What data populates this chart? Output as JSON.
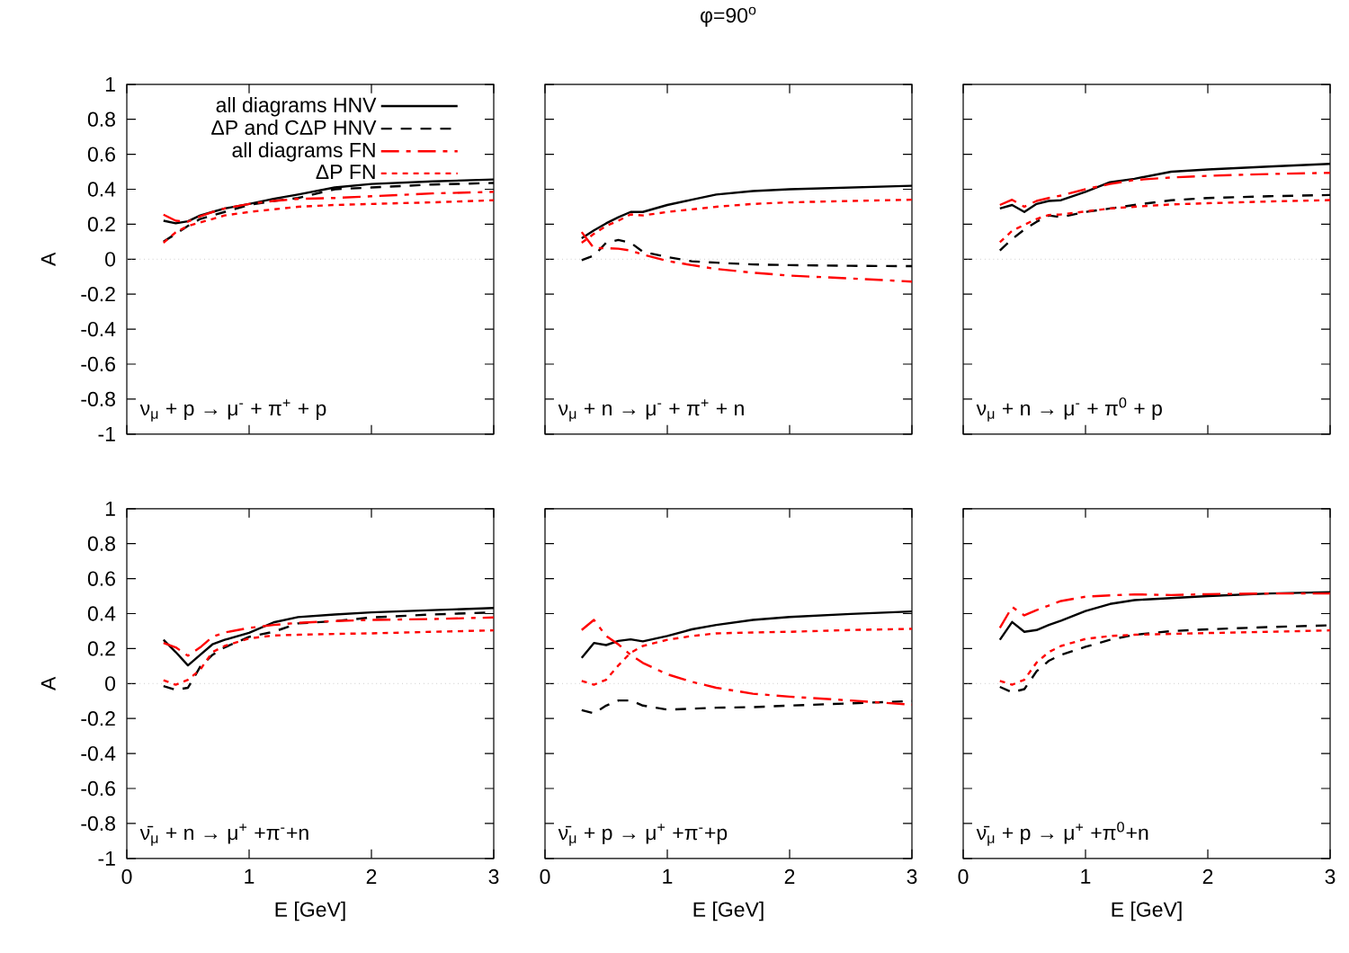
{
  "chart_data": [
    {
      "type": "line",
      "ylabel": "A",
      "annotations": [
        "ν$_{μ}$ + p → μ$^{-}$ + π$^{+}$ + p"
      ],
      "xlim": [
        0,
        3
      ],
      "ylim": [
        -1,
        1
      ],
      "xticks": [
        0,
        1,
        2,
        3
      ],
      "yticks": [
        -1,
        -0.8,
        -0.6,
        -0.4,
        -0.2,
        0,
        0.2,
        0.4,
        0.6,
        0.8,
        1
      ],
      "tick_labels": "y",
      "legend": "top right",
      "ref_lines": [
        {
          "axis": "y",
          "value": 0,
          "color": "#b0b0b0",
          "line_style": "dotted"
        }
      ],
      "x": [
        0.3,
        0.4,
        0.5,
        0.6,
        0.7,
        0.8,
        1.0,
        1.2,
        1.4,
        1.7,
        2.0,
        2.5,
        3.0
      ],
      "series": [
        {
          "name": "all diagrams HNV",
          "color": "#000000",
          "line_style": "solid",
          "values": [
            0.22,
            0.205,
            0.217,
            0.25,
            0.27,
            0.29,
            0.316,
            0.345,
            0.37,
            0.41,
            0.43,
            0.445,
            0.456
          ]
        },
        {
          "name": "ΔP and CΔP HNV",
          "color": "#000000",
          "line_style": "dashed",
          "values": [
            0.1,
            0.145,
            0.19,
            0.23,
            0.25,
            0.27,
            0.31,
            0.333,
            0.35,
            0.4,
            0.41,
            0.427,
            0.436
          ]
        },
        {
          "name": "all diagrams FN",
          "color": "#ff0000",
          "line_style": "dashdot",
          "values": [
            0.255,
            0.22,
            0.215,
            0.245,
            0.27,
            0.29,
            0.316,
            0.333,
            0.345,
            0.35,
            0.36,
            0.376,
            0.385
          ]
        },
        {
          "name": "ΔP FN",
          "color": "#ff0000",
          "line_style": "dotted",
          "values": [
            0.094,
            0.154,
            0.19,
            0.21,
            0.23,
            0.25,
            0.27,
            0.285,
            0.3,
            0.31,
            0.316,
            0.325,
            0.337
          ]
        }
      ]
    },
    {
      "type": "line",
      "title": "φ=90$^{o}$",
      "annotations": [
        "ν$_{μ}$ + n → μ$^{-}$ + π$^{+}$ + n"
      ],
      "xlim": [
        0,
        3
      ],
      "ylim": [
        -1,
        1
      ],
      "xticks": [
        0,
        1,
        2,
        3
      ],
      "yticks": [
        -1,
        -0.8,
        -0.6,
        -0.4,
        -0.2,
        0,
        0.2,
        0.4,
        0.6,
        0.8,
        1
      ],
      "tick_labels": false,
      "ref_lines": [
        {
          "axis": "y",
          "value": 0,
          "color": "#b0b0b0",
          "line_style": "dotted"
        }
      ],
      "x": [
        0.3,
        0.4,
        0.5,
        0.6,
        0.7,
        0.8,
        1.0,
        1.2,
        1.4,
        1.7,
        2.0,
        2.5,
        3.0
      ],
      "series": [
        {
          "color": "#000000",
          "line_style": "solid",
          "values": [
            0.12,
            0.165,
            0.205,
            0.24,
            0.27,
            0.27,
            0.31,
            0.34,
            0.37,
            0.39,
            0.4,
            0.41,
            0.42
          ]
        },
        {
          "color": "#000000",
          "line_style": "dashed",
          "values": [
            -0.005,
            0.02,
            0.094,
            0.11,
            0.094,
            0.043,
            0.012,
            -0.012,
            -0.02,
            -0.03,
            -0.034,
            -0.038,
            -0.04
          ]
        },
        {
          "color": "#ff0000",
          "line_style": "dashdot",
          "values": [
            0.155,
            0.063,
            0.063,
            0.06,
            0.05,
            0.026,
            -0.01,
            -0.034,
            -0.056,
            -0.077,
            -0.094,
            -0.11,
            -0.128
          ]
        },
        {
          "color": "#ff0000",
          "line_style": "dotted",
          "values": [
            0.094,
            0.145,
            0.19,
            0.22,
            0.256,
            0.25,
            0.27,
            0.285,
            0.3,
            0.316,
            0.325,
            0.333,
            0.34
          ]
        }
      ]
    },
    {
      "type": "line",
      "annotations": [
        "ν$_{μ}$ + n → μ$^{-}$ + π$^{0}$ + p"
      ],
      "xlim": [
        0,
        3
      ],
      "ylim": [
        -1,
        1
      ],
      "xticks": [
        0,
        1,
        2,
        3
      ],
      "yticks": [
        -1,
        -0.8,
        -0.6,
        -0.4,
        -0.2,
        0,
        0.2,
        0.4,
        0.6,
        0.8,
        1
      ],
      "tick_labels": false,
      "ref_lines": [
        {
          "axis": "y",
          "value": 0,
          "color": "#b0b0b0",
          "line_style": "dotted"
        }
      ],
      "x": [
        0.3,
        0.4,
        0.5,
        0.6,
        0.7,
        0.8,
        1.0,
        1.2,
        1.4,
        1.7,
        2.0,
        2.5,
        3.0
      ],
      "series": [
        {
          "color": "#000000",
          "line_style": "solid",
          "values": [
            0.29,
            0.31,
            0.27,
            0.316,
            0.333,
            0.337,
            0.385,
            0.44,
            0.46,
            0.5,
            0.513,
            0.53,
            0.545
          ]
        },
        {
          "color": "#000000",
          "line_style": "dashed",
          "values": [
            0.05,
            0.115,
            0.17,
            0.214,
            0.25,
            0.24,
            0.27,
            0.29,
            0.31,
            0.337,
            0.35,
            0.36,
            0.367
          ]
        },
        {
          "color": "#ff0000",
          "line_style": "dashdot",
          "values": [
            0.31,
            0.34,
            0.3,
            0.333,
            0.35,
            0.364,
            0.4,
            0.43,
            0.453,
            0.467,
            0.477,
            0.487,
            0.494
          ]
        },
        {
          "color": "#ff0000",
          "line_style": "dotted",
          "values": [
            0.097,
            0.162,
            0.197,
            0.23,
            0.253,
            0.256,
            0.273,
            0.29,
            0.3,
            0.313,
            0.32,
            0.33,
            0.338
          ]
        }
      ]
    },
    {
      "type": "line",
      "ylabel": "A",
      "xlabel": "E [GeV]",
      "annotations": [
        "ν̄$_{μ}$ + n → μ$^{+}$ +π$^{-}$+n"
      ],
      "xlim": [
        0,
        3
      ],
      "ylim": [
        -1,
        1
      ],
      "xticks": [
        0,
        1,
        2,
        3
      ],
      "yticks": [
        -1,
        -0.8,
        -0.6,
        -0.4,
        -0.2,
        0,
        0.2,
        0.4,
        0.6,
        0.8,
        1
      ],
      "ref_lines": [
        {
          "axis": "y",
          "value": 0,
          "color": "#b0b0b0",
          "line_style": "dotted"
        }
      ],
      "x": [
        0.3,
        0.4,
        0.5,
        0.6,
        0.7,
        0.8,
        1.0,
        1.2,
        1.4,
        1.7,
        2.0,
        2.5,
        3.0
      ],
      "series": [
        {
          "color": "#000000",
          "line_style": "solid",
          "values": [
            0.25,
            0.18,
            0.104,
            0.164,
            0.224,
            0.25,
            0.29,
            0.35,
            0.38,
            0.395,
            0.407,
            0.42,
            0.432
          ]
        },
        {
          "color": "#000000",
          "line_style": "dashed",
          "values": [
            -0.015,
            -0.036,
            -0.024,
            0.096,
            0.164,
            0.207,
            0.267,
            0.296,
            0.344,
            0.357,
            0.378,
            0.395,
            0.407
          ]
        },
        {
          "color": "#ff0000",
          "line_style": "dashdot",
          "values": [
            0.232,
            0.207,
            0.159,
            0.207,
            0.267,
            0.292,
            0.318,
            0.335,
            0.347,
            0.357,
            0.364,
            0.369,
            0.378
          ]
        },
        {
          "color": "#ff0000",
          "line_style": "dotted",
          "values": [
            0.019,
            -0.007,
            0.022,
            0.079,
            0.18,
            0.215,
            0.258,
            0.275,
            0.279,
            0.284,
            0.287,
            0.296,
            0.304
          ]
        }
      ]
    },
    {
      "type": "line",
      "xlabel": "E [GeV]",
      "annotations": [
        "ν̄$_{μ}$ + p → μ$^{+}$ +π$^{-}$+p"
      ],
      "xlim": [
        0,
        3
      ],
      "ylim": [
        -1,
        1
      ],
      "xticks": [
        0,
        1,
        2,
        3
      ],
      "yticks": [
        -1,
        -0.8,
        -0.6,
        -0.4,
        -0.2,
        0,
        0.2,
        0.4,
        0.6,
        0.8,
        1
      ],
      "tick_labels": "x",
      "ref_lines": [
        {
          "axis": "y",
          "value": 0,
          "color": "#b0b0b0",
          "line_style": "dotted"
        }
      ],
      "x": [
        0.3,
        0.4,
        0.5,
        0.6,
        0.7,
        0.8,
        1.0,
        1.2,
        1.4,
        1.7,
        2.0,
        2.5,
        3.0
      ],
      "series": [
        {
          "color": "#000000",
          "line_style": "solid",
          "values": [
            0.147,
            0.232,
            0.22,
            0.244,
            0.253,
            0.241,
            0.272,
            0.31,
            0.335,
            0.364,
            0.381,
            0.398,
            0.412
          ]
        },
        {
          "color": "#000000",
          "line_style": "dashed",
          "values": [
            -0.152,
            -0.17,
            -0.126,
            -0.097,
            -0.097,
            -0.126,
            -0.149,
            -0.144,
            -0.138,
            -0.135,
            -0.126,
            -0.113,
            -0.1
          ]
        },
        {
          "color": "#ff0000",
          "line_style": "dashdot",
          "values": [
            0.306,
            0.364,
            0.272,
            0.224,
            0.164,
            0.118,
            0.053,
            0.01,
            -0.024,
            -0.058,
            -0.075,
            -0.097,
            -0.121
          ]
        },
        {
          "color": "#ff0000",
          "line_style": "dotted",
          "values": [
            0.015,
            -0.007,
            0.022,
            0.104,
            0.176,
            0.215,
            0.25,
            0.272,
            0.287,
            0.292,
            0.296,
            0.306,
            0.313
          ]
        }
      ]
    },
    {
      "type": "line",
      "xlabel": "E [GeV]",
      "annotations": [
        "ν̄$_{μ}$ + p → μ$^{+}$ +π$^{0}$+n"
      ],
      "xlim": [
        0,
        3
      ],
      "ylim": [
        -1,
        1
      ],
      "xticks": [
        0,
        1,
        2,
        3
      ],
      "yticks": [
        -1,
        -0.8,
        -0.6,
        -0.4,
        -0.2,
        0,
        0.2,
        0.4,
        0.6,
        0.8,
        1
      ],
      "tick_labels": "x",
      "ref_lines": [
        {
          "axis": "y",
          "value": 0,
          "color": "#b0b0b0",
          "line_style": "dotted"
        }
      ],
      "x": [
        0.3,
        0.4,
        0.5,
        0.6,
        0.7,
        0.8,
        1.0,
        1.2,
        1.4,
        1.7,
        2.0,
        2.5,
        3.0
      ],
      "series": [
        {
          "color": "#000000",
          "line_style": "solid",
          "values": [
            0.25,
            0.352,
            0.296,
            0.306,
            0.335,
            0.36,
            0.415,
            0.455,
            0.477,
            0.489,
            0.5,
            0.515,
            0.523
          ]
        },
        {
          "color": "#000000",
          "line_style": "dashed",
          "values": [
            -0.019,
            -0.05,
            -0.032,
            0.07,
            0.13,
            0.164,
            0.21,
            0.25,
            0.279,
            0.3,
            0.31,
            0.323,
            0.333
          ]
        },
        {
          "color": "#ff0000",
          "line_style": "dashdot",
          "values": [
            0.318,
            0.438,
            0.39,
            0.42,
            0.446,
            0.472,
            0.497,
            0.504,
            0.51,
            0.506,
            0.511,
            0.515,
            0.515
          ]
        },
        {
          "color": "#ff0000",
          "line_style": "dotted",
          "values": [
            0.015,
            -0.007,
            0.022,
            0.12,
            0.18,
            0.215,
            0.255,
            0.272,
            0.279,
            0.284,
            0.289,
            0.296,
            0.304
          ]
        }
      ]
    }
  ]
}
